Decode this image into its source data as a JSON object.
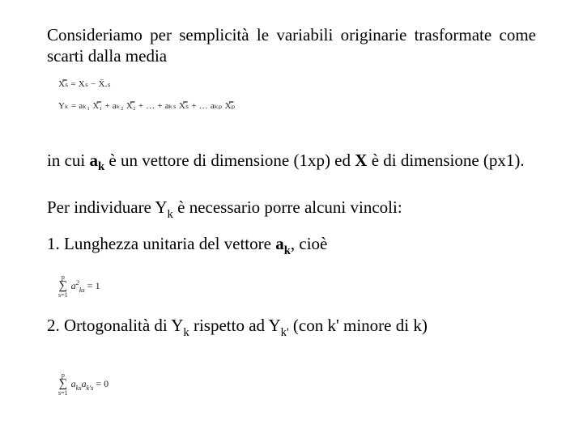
{
  "intro": {
    "text": "Consideriamo per semplicità le variabili originarie trasformate come scarti dalla media",
    "fontsize": 21,
    "align": "justify"
  },
  "formula1": {
    "expr": "X̿ₛ = Xₛ − X̄.ₛ",
    "fontsize": 11
  },
  "formula2": {
    "expr": "Yₖ = aₖ₁ X̿₁ + aₖ₂ X̿₂ + … + aₖₛ X̿ₛ + … aₖₚ X̿ₚ",
    "fontsize": 11
  },
  "para_ak": {
    "pre": "in cui ",
    "ak": "a",
    "ak_sub": "k",
    "mid1": " è un vettore di dimensione (1xp) ed ",
    "X": "X",
    "mid2": " è di dimensione (px1).",
    "fontsize": 21,
    "align": "justify"
  },
  "constraints_intro": "Per individuare Y",
  "constraints_sub": "k",
  "constraints_tail": " è necessario porre alcuni vincoli:",
  "item1": {
    "num": "1.  Lunghezza unitaria del vettore ",
    "ak": "a",
    "ak_sub": "k",
    "tail": ", cioè"
  },
  "formula3": {
    "sigma_top": "p",
    "sigma_sym": "∑",
    "sigma_bot": "s=1",
    "body_a": "a",
    "body_sup": "2",
    "body_sub": "ks",
    "rhs": " = 1",
    "fontsize": 12
  },
  "item2": {
    "text_pre": "2. Ortogonalità di Y",
    "sub1": "k",
    "mid": " rispetto ad Y",
    "sub2": "k'",
    "tail": " (con k' minore di k)"
  },
  "formula4": {
    "sigma_top": "p",
    "sigma_sym": "∑",
    "sigma_bot": "s=1",
    "body_a1": "a",
    "body_sub1": "ks",
    "body_a2": "a",
    "body_sub2": "k's",
    "rhs": " = 0",
    "fontsize": 12
  },
  "colors": {
    "text": "#000000",
    "formula": "#222222",
    "background": "#ffffff"
  }
}
